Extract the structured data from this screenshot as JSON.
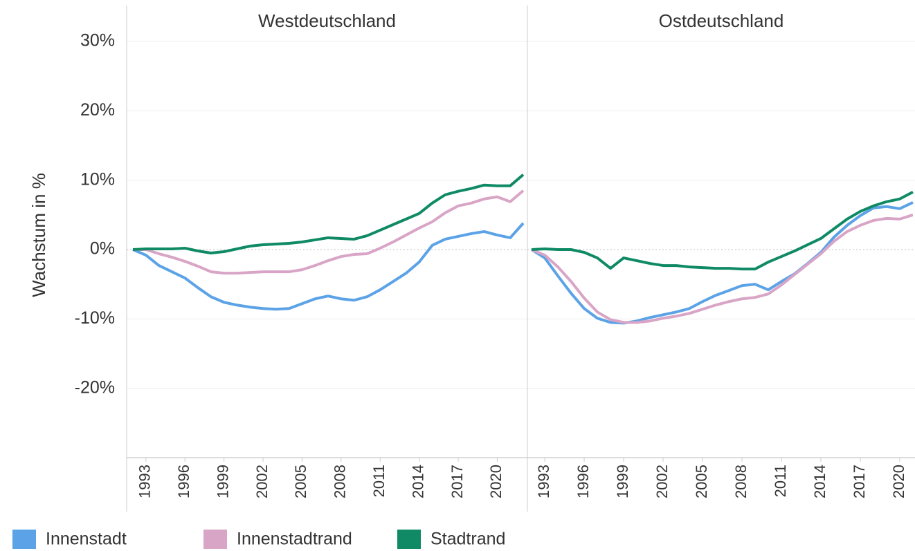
{
  "chart_data": {
    "type": "line",
    "ylabel": "Wachstum in %",
    "ylim": [
      -30,
      30.5
    ],
    "yticks": [
      {
        "value": 30,
        "label": "30%"
      },
      {
        "value": 20,
        "label": "20%"
      },
      {
        "value": 10,
        "label": "10%"
      },
      {
        "value": 0,
        "label": "0%"
      },
      {
        "value": -10,
        "label": "-10%"
      },
      {
        "value": -20,
        "label": "-20%"
      }
    ],
    "legend": [
      {
        "name": "Innenstadt",
        "color": "#5ba3e6"
      },
      {
        "name": "Innenstadtrand",
        "color": "#d9a5c7"
      },
      {
        "name": "Stadtrand",
        "color": "#0f8a65"
      }
    ],
    "facets": [
      {
        "title": "Westdeutschland",
        "xlim": [
          1991.52,
          2022.32
        ],
        "xticks": [
          1993,
          1996,
          1999,
          2002,
          2005,
          2008,
          2011,
          2014,
          2017,
          2020
        ],
        "x": [
          1992,
          1993,
          1994,
          1995,
          1996,
          1997,
          1998,
          1999,
          2000,
          2001,
          2002,
          2003,
          2004,
          2005,
          2006,
          2007,
          2008,
          2009,
          2010,
          2011,
          2012,
          2013,
          2014,
          2015,
          2016,
          2017,
          2018,
          2019,
          2020,
          2021,
          2022
        ],
        "series": [
          {
            "values": [
              0,
              -0.8,
              -2.3,
              -3.2,
              -4.1,
              -5.5,
              -6.8,
              -7.6,
              -8.0,
              -8.3,
              -8.5,
              -8.6,
              -8.5,
              -7.8,
              -7.1,
              -6.7,
              -7.1,
              -7.3,
              -6.8,
              -5.8,
              -4.6,
              -3.4,
              -1.8,
              0.6,
              1.5,
              1.9,
              2.3,
              2.6,
              2.1,
              1.7,
              3.8
            ]
          },
          {
            "values": [
              0,
              0,
              -0.6,
              -1.1,
              -1.7,
              -2.4,
              -3.2,
              -3.4,
              -3.4,
              -3.3,
              -3.2,
              -3.2,
              -3.2,
              -2.9,
              -2.3,
              -1.6,
              -1.0,
              -0.7,
              -0.6,
              0.2,
              1.1,
              2.1,
              3.1,
              4.0,
              5.3,
              6.3,
              6.7,
              7.3,
              7.6,
              6.9,
              8.5
            ]
          },
          {
            "values": [
              0,
              0.1,
              0.1,
              0.1,
              0.2,
              -0.2,
              -0.5,
              -0.3,
              0.1,
              0.5,
              0.7,
              0.8,
              0.9,
              1.1,
              1.4,
              1.7,
              1.6,
              1.5,
              2.0,
              2.8,
              3.6,
              4.4,
              5.2,
              6.7,
              7.9,
              8.4,
              8.8,
              9.3,
              9.2,
              9.2,
              10.8
            ]
          }
        ]
      },
      {
        "title": "Ostdeutschland",
        "xlim": [
          1991.68,
          2021.16
        ],
        "xticks": [
          1993,
          1996,
          1999,
          2002,
          2005,
          2008,
          2011,
          2014,
          2017,
          2020
        ],
        "x": [
          1992,
          1993,
          1994,
          1995,
          1996,
          1997,
          1998,
          1999,
          2000,
          2001,
          2002,
          2003,
          2004,
          2005,
          2006,
          2007,
          2008,
          2009,
          2010,
          2011,
          2012,
          2013,
          2014,
          2015,
          2016,
          2017,
          2018,
          2019,
          2020,
          2021
        ],
        "series": [
          {
            "values": [
              0,
              -1.2,
              -3.8,
              -6.3,
              -8.5,
              -9.9,
              -10.5,
              -10.6,
              -10.3,
              -9.8,
              -9.4,
              -9.0,
              -8.5,
              -7.5,
              -6.6,
              -5.9,
              -5.2,
              -5.0,
              -5.8,
              -4.6,
              -3.5,
              -2.0,
              -0.4,
              1.8,
              3.5,
              4.9,
              6.0,
              6.2,
              5.9,
              6.8
            ]
          },
          {
            "values": [
              0,
              -0.8,
              -2.5,
              -4.6,
              -7.0,
              -9.0,
              -10.1,
              -10.5,
              -10.5,
              -10.3,
              -9.9,
              -9.6,
              -9.2,
              -8.6,
              -8.0,
              -7.5,
              -7.1,
              -6.9,
              -6.4,
              -5.1,
              -3.6,
              -2.1,
              -0.6,
              1.2,
              2.6,
              3.5,
              4.2,
              4.5,
              4.4,
              5.0
            ]
          },
          {
            "values": [
              0,
              0.1,
              0,
              0,
              -0.4,
              -1.2,
              -2.7,
              -1.2,
              -1.6,
              -2.0,
              -2.3,
              -2.3,
              -2.5,
              -2.6,
              -2.7,
              -2.7,
              -2.8,
              -2.8,
              -1.8,
              -1.0,
              -0.2,
              0.7,
              1.6,
              3.0,
              4.4,
              5.5,
              6.3,
              6.9,
              7.3,
              8.3
            ]
          }
        ]
      }
    ]
  }
}
